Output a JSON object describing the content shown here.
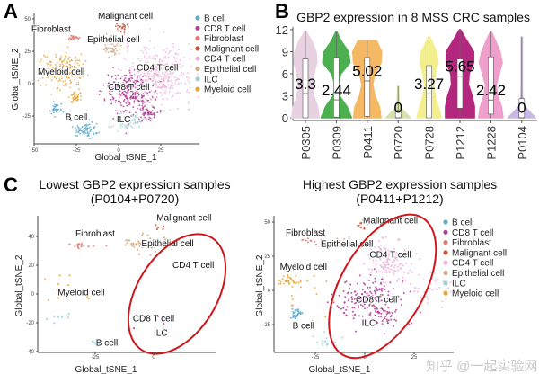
{
  "panels": {
    "a": {
      "letter": "A"
    },
    "b": {
      "letter": "B"
    },
    "c": {
      "letter": "C"
    }
  },
  "watermark": "知乎 @一起实验网",
  "chart_data": [
    {
      "id": "A",
      "type": "scatter",
      "title": "",
      "xlabel": "Global_tSNE_1",
      "ylabel": "Global_tSNE_2",
      "x_ticks": [
        {
          "v": -50,
          "t": "-50"
        },
        {
          "v": -25,
          "t": "-25"
        },
        {
          "v": 0,
          "t": "0"
        },
        {
          "v": 25,
          "t": "25"
        }
      ],
      "y_ticks": [
        {
          "v": 50,
          "t": "50"
        },
        {
          "v": 25,
          "t": "25"
        },
        {
          "v": 0,
          "t": "0"
        },
        {
          "v": -25,
          "t": "-25"
        }
      ],
      "legend": {
        "position": "right",
        "entries": [
          "B cell",
          "CD8 T cell",
          "Fibroblast",
          "Malignant cell",
          "CD4 T cell",
          "Epithelial cell",
          "ILC",
          "Myeloid cell"
        ]
      },
      "cluster_labels": [
        {
          "t": "Malignant cell",
          "x": 4,
          "y": 50
        },
        {
          "t": "Fibroblast",
          "x": -40,
          "y": 40
        },
        {
          "t": "Epithelial cell",
          "x": -3,
          "y": 32
        },
        {
          "t": "CD4 T cell",
          "x": 23,
          "y": 10
        },
        {
          "t": "Myeloid cell",
          "x": -34,
          "y": 7
        },
        {
          "t": "CD8 T cell",
          "x": 6,
          "y": -5
        },
        {
          "t": "B cell",
          "x": -25,
          "y": -28
        },
        {
          "t": "ILC",
          "x": 3,
          "y": -30
        }
      ],
      "clusters": [
        {
          "cell": "CD4 T cell",
          "n": 360,
          "x": 24,
          "y": 6,
          "sx": 10,
          "sy": 11
        },
        {
          "cell": "CD8 T cell",
          "n": 260,
          "x": 6,
          "y": -6,
          "sx": 7,
          "sy": 8
        },
        {
          "cell": "CD8 T cell",
          "n": 60,
          "x": 17,
          "y": -22,
          "sx": 3,
          "sy": 3
        },
        {
          "cell": "Myeloid cell",
          "n": 160,
          "x": -33,
          "y": 10,
          "sx": 6,
          "sy": 7
        },
        {
          "cell": "Myeloid cell",
          "n": 40,
          "x": -25,
          "y": -10,
          "sx": 2,
          "sy": 2
        },
        {
          "cell": "B cell",
          "n": 70,
          "x": -20,
          "y": -36,
          "sx": 4,
          "sy": 3
        },
        {
          "cell": "B cell",
          "n": 40,
          "x": -37,
          "y": -20,
          "sx": 2,
          "sy": 2
        },
        {
          "cell": "ILC",
          "n": 60,
          "x": 6,
          "y": -30,
          "sx": 4,
          "sy": 3
        },
        {
          "cell": "Epithelial cell",
          "n": 50,
          "x": -3,
          "y": 29,
          "sx": 3,
          "sy": 4
        },
        {
          "cell": "Fibroblast",
          "n": 25,
          "x": -27,
          "y": 35,
          "sx": 2,
          "sy": 1
        },
        {
          "cell": "Malignant cell",
          "n": 25,
          "x": 2,
          "y": 44,
          "sx": 1.5,
          "sy": 2
        }
      ]
    },
    {
      "id": "B",
      "type": "violin",
      "title": "GBP2 expression in 8 MSS CRC samples",
      "xlabel": "",
      "ylabel": "",
      "ylim": [
        0,
        12
      ],
      "y_ticks": [
        {
          "v": 0,
          "t": "0"
        },
        {
          "v": 3,
          "t": "3"
        },
        {
          "v": 6,
          "t": "6"
        },
        {
          "v": 9,
          "t": "9"
        },
        {
          "v": 12,
          "t": "12"
        }
      ],
      "density_levels": [
        0,
        1.5,
        3,
        4.5,
        6,
        7.5,
        9,
        10.5,
        12
      ],
      "samples": [
        {
          "name": "P0305",
          "label": "3.3",
          "median": 3.3,
          "q1": 0,
          "q3": 8.0,
          "max": 11.8,
          "color": "#e8d2e2",
          "density": [
            0.9,
            0.8,
            0.55,
            0.45,
            0.55,
            0.75,
            0.7,
            0.4,
            0.05
          ]
        },
        {
          "name": "P0309",
          "label": "2.44",
          "median": 2.44,
          "q1": 0.1,
          "q3": 8.2,
          "max": 11.7,
          "color": "#4caf50",
          "density": [
            1,
            0.7,
            0.2,
            0.1,
            0.3,
            0.9,
            0.8,
            0.3,
            0
          ]
        },
        {
          "name": "P0411",
          "label": "5.02",
          "median": 5.02,
          "q1": 0.2,
          "q3": 8.2,
          "max": 10.5,
          "color": "#f5b865",
          "density": [
            0.9,
            0.8,
            0.5,
            0.35,
            0.5,
            0.9,
            0.95,
            0.6,
            0
          ]
        },
        {
          "name": "P0720",
          "label": "0",
          "median": 0,
          "q1": 0,
          "q3": 1.0,
          "max": 4.3,
          "color": "#d6e2ae",
          "density": [
            0.8,
            0.1,
            0.04,
            0.02,
            0,
            0,
            0,
            0,
            0
          ]
        },
        {
          "name": "P0728",
          "label": "3.27",
          "median": 3.27,
          "q1": 0,
          "q3": 7.1,
          "max": 11.0,
          "color": "#f4ef8e",
          "density": [
            0.8,
            0.6,
            0.4,
            0.3,
            0.4,
            0.6,
            0.5,
            0.15,
            0
          ]
        },
        {
          "name": "P1212",
          "label": "5.65",
          "median": 5.65,
          "q1": 1.3,
          "q3": 8.0,
          "max": 12.0,
          "color": "#b3287e",
          "density": [
            0.95,
            0.95,
            0.8,
            0.55,
            0.6,
            0.9,
            0.9,
            0.45,
            0
          ]
        },
        {
          "name": "P1228",
          "label": "2.42",
          "median": 2.42,
          "q1": 0.5,
          "q3": 8.3,
          "max": 11.7,
          "color": "#ee9fcb",
          "density": [
            0.8,
            0.7,
            0.45,
            0.35,
            0.55,
            0.75,
            0.6,
            0.3,
            0
          ]
        },
        {
          "name": "P0104",
          "label": "0",
          "median": 0,
          "q1": 0,
          "q3": 2.6,
          "max": 11.0,
          "color": "#c9b8e6",
          "density": [
            0.9,
            0.2,
            0.05,
            0.03,
            0.02,
            0.02,
            0.02,
            0.02,
            0
          ]
        }
      ]
    },
    {
      "id": "C-left",
      "type": "scatter",
      "title": [
        "Lowest GBP2 expression samples",
        "(P0104+P0720)"
      ],
      "xlabel": "Global_tSNE_1",
      "ylabel": "Global_tSNE_2",
      "x_ticks": [
        {
          "v": -25,
          "t": "-25"
        },
        {
          "v": 0,
          "t": "0"
        }
      ],
      "y_ticks": [
        {
          "v": 40,
          "t": "40"
        },
        {
          "v": 20,
          "t": "20"
        },
        {
          "v": 0,
          "t": "0"
        },
        {
          "v": -20,
          "t": "-20"
        },
        {
          "v": -40,
          "t": "-40"
        }
      ],
      "highlight": {
        "shape": "ellipse",
        "color": "#d0161c",
        "cx": 10,
        "cy": 0,
        "rx": 17,
        "ry": 46,
        "angle": 32
      },
      "cluster_labels": [
        {
          "t": "Malignant cell",
          "x": 13,
          "y": 51
        },
        {
          "t": "Fibroblast",
          "x": -25,
          "y": 40
        },
        {
          "t": "Epithelial cell",
          "x": 6,
          "y": 33
        },
        {
          "t": "CD4 T cell",
          "x": 17,
          "y": 18
        },
        {
          "t": "Myeloid cell",
          "x": -31,
          "y": -1
        },
        {
          "t": "CD8 T cell",
          "x": 0,
          "y": -19
        },
        {
          "t": "ILC",
          "x": 3,
          "y": -29
        },
        {
          "t": "B cell",
          "x": -20,
          "y": -36
        }
      ],
      "clusters": [
        {
          "cell": "Epithelial cell",
          "n": 60,
          "x": -3,
          "y": 35,
          "sx": 5,
          "sy": 2.5
        },
        {
          "cell": "Fibroblast",
          "n": 14,
          "x": -29,
          "y": 34,
          "sx": 3,
          "sy": 1.2
        },
        {
          "cell": "Malignant cell",
          "n": 5,
          "x": 2,
          "y": 46,
          "sx": 1,
          "sy": 1.5
        },
        {
          "cell": "Myeloid cell",
          "n": 12,
          "x": -38,
          "y": 2,
          "sx": 6,
          "sy": 5
        },
        {
          "cell": "ILC",
          "n": 8,
          "x": -40,
          "y": -17,
          "sx": 3,
          "sy": 3
        },
        {
          "cell": "B cell",
          "n": 12,
          "x": -24,
          "y": -34,
          "sx": 1,
          "sy": 1
        },
        {
          "cell": "CD8 T cell",
          "n": 4,
          "x": -2,
          "y": -20,
          "sx": 4,
          "sy": 3
        }
      ]
    },
    {
      "id": "C-right",
      "type": "scatter",
      "title": [
        "Highest GBP2 expression samples",
        "(P0411+P1212)"
      ],
      "xlabel": "Global_tSNE_1",
      "ylabel": "Global_tSNE_2",
      "x_ticks": [
        {
          "v": -25,
          "t": "-25"
        },
        {
          "v": 0,
          "t": "0"
        },
        {
          "v": 25,
          "t": "25"
        }
      ],
      "y_ticks": [
        {
          "v": 50,
          "t": "50"
        },
        {
          "v": 25,
          "t": "25"
        },
        {
          "v": 0,
          "t": "0"
        },
        {
          "v": -25,
          "t": "-25"
        }
      ],
      "highlight": {
        "shape": "ellipse",
        "color": "#d0161c",
        "cx": 9,
        "cy": 3,
        "rx": 21,
        "ry": 58,
        "angle": 30
      },
      "legend": {
        "position": "right",
        "entries": [
          "B cell",
          "CD8 T cell",
          "Fibroblast",
          "Malignant cell",
          "CD4 T cell",
          "Epithelial cell",
          "ILC",
          "Myeloid cell"
        ]
      },
      "cluster_labels": [
        {
          "t": "Malignant cell",
          "x": 13,
          "y": 49
        },
        {
          "t": "Fibroblast",
          "x": -30,
          "y": 40
        },
        {
          "t": "Epithelial cell",
          "x": -9,
          "y": 32
        },
        {
          "t": "CD4 T cell",
          "x": 13,
          "y": 24
        },
        {
          "t": "Myeloid cell",
          "x": -31,
          "y": 15
        },
        {
          "t": "CD8 T cell",
          "x": 6,
          "y": -9
        },
        {
          "t": "ILC",
          "x": 2,
          "y": -26
        },
        {
          "t": "B cell",
          "x": -31,
          "y": -28
        }
      ],
      "clusters": [
        {
          "cell": "CD4 T cell",
          "n": 130,
          "x": 12,
          "y": 22,
          "sx": 6,
          "sy": 8
        },
        {
          "cell": "CD4 T cell",
          "n": 40,
          "x": 35,
          "y": 0,
          "sx": 8,
          "sy": 6
        },
        {
          "cell": "CD8 T cell",
          "n": 170,
          "x": 3,
          "y": -6,
          "sx": 9,
          "sy": 8
        },
        {
          "cell": "CD8 T cell",
          "n": 30,
          "x": 12,
          "y": -20,
          "sx": 4,
          "sy": 4
        },
        {
          "cell": "Myeloid cell",
          "n": 30,
          "x": -38,
          "y": 7,
          "sx": 3,
          "sy": 2
        },
        {
          "cell": "Myeloid cell",
          "n": 15,
          "x": -30,
          "y": -5,
          "sx": 6,
          "sy": 8
        },
        {
          "cell": "B cell",
          "n": 30,
          "x": -35,
          "y": -17,
          "sx": 1.5,
          "sy": 2
        },
        {
          "cell": "ILC",
          "n": 15,
          "x": -19,
          "y": -37,
          "sx": 3,
          "sy": 2
        },
        {
          "cell": "Fibroblast",
          "n": 10,
          "x": -28,
          "y": 36,
          "sx": 3,
          "sy": 1
        },
        {
          "cell": "Epithelial cell",
          "n": 8,
          "x": -10,
          "y": 38,
          "sx": 3,
          "sy": 3
        },
        {
          "cell": "Malignant cell",
          "n": 12,
          "x": -1,
          "y": 47,
          "sx": 1.5,
          "sy": 2
        }
      ]
    }
  ],
  "cell_colors": {
    "B cell": "#5fa9c9",
    "CD8 T cell": "#b23f98",
    "Fibroblast": "#e07a6f",
    "Malignant cell": "#c5583c",
    "CD4 T cell": "#eeb3d9",
    "Epithelial cell": "#d2aa87",
    "ILC": "#9fd3d3",
    "Myeloid cell": "#e7a73c"
  }
}
